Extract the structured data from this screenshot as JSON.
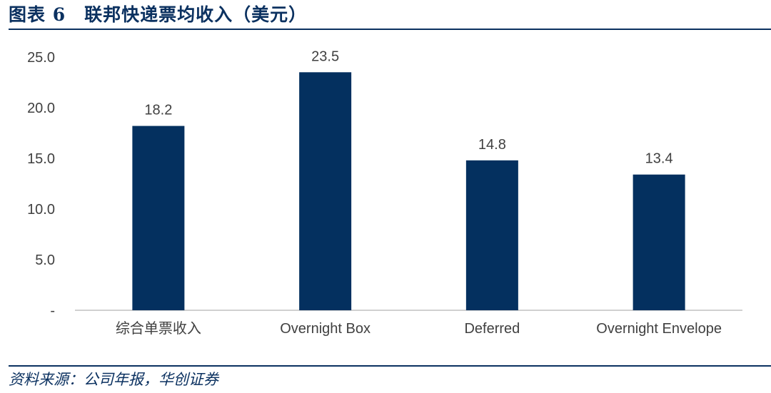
{
  "header": {
    "title": "图表 6　联邦快递票均收入（美元）"
  },
  "footer": {
    "source": "资料来源：公司年报，华创证券"
  },
  "colors": {
    "bar": "#04305f",
    "title": "#0b3160",
    "axis": "#d0d0d0",
    "text": "#404040"
  },
  "chart_data": {
    "type": "bar",
    "categories": [
      "综合单票收入",
      "Overnight Box",
      "Deferred",
      "Overnight Envelope"
    ],
    "values": [
      18.2,
      23.5,
      14.8,
      13.4
    ],
    "value_labels": [
      "18.2",
      "23.5",
      "14.8",
      "13.4"
    ],
    "yticks": [
      0,
      5,
      10,
      15,
      20,
      25
    ],
    "ytick_labels": [
      "-",
      "5.0",
      "10.0",
      "15.0",
      "20.0",
      "25.0"
    ],
    "ylim": [
      0,
      25
    ],
    "grid": false,
    "legend": "none"
  }
}
